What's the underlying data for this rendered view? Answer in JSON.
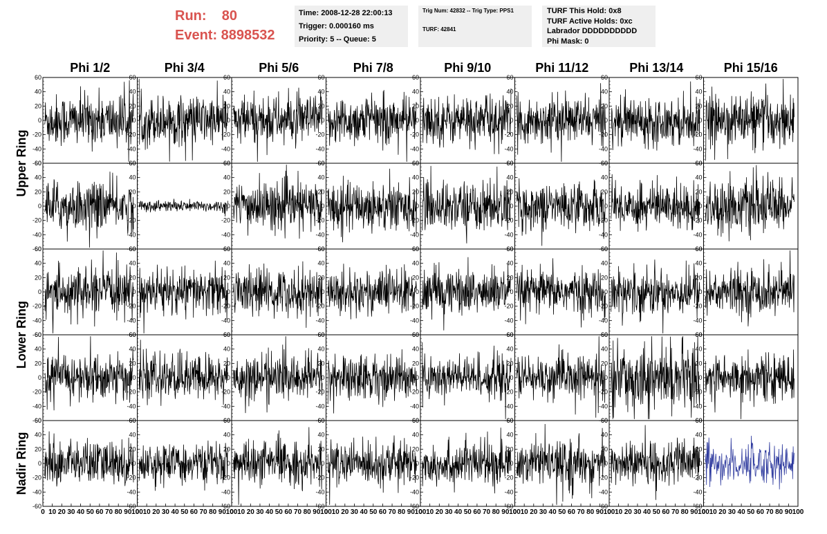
{
  "header": {
    "run_label": "Run:    80",
    "event_label": "Event: 8898532"
  },
  "info_box_1": {
    "time": "Time: 2008-12-28 22:00:13",
    "trigger": "Trigger: 0.000160 ms",
    "priority": "Priority: 5 -- Queue: 5"
  },
  "info_box_2": {
    "trig": "Trig Num: 42832 -- Trig Type: PPS1",
    "turf": "TURF: 42841"
  },
  "info_box_3": {
    "hold": "TURF This Hold: 0x8",
    "active": "TURF Active Holds: 0xc",
    "labrador": "Labrador DDDDDDDDDD",
    "phimask": "Phi Mask: 0"
  },
  "chart_data": {
    "type": "line",
    "columns": [
      "Phi 1/2",
      "Phi 3/4",
      "Phi 5/6",
      "Phi 7/8",
      "Phi 9/10",
      "Phi 11/12",
      "Phi 13/14",
      "Phi 15/16"
    ],
    "ring_labels": [
      "Upper Ring",
      "Lower Ring",
      "Nadir Ring"
    ],
    "xlim": [
      0,
      100
    ],
    "ylim": [
      -60,
      60
    ],
    "x_ticks": [
      0,
      10,
      20,
      30,
      40,
      50,
      60,
      70,
      80,
      90,
      100
    ],
    "y_ticks": [
      -60,
      -40,
      -20,
      0,
      20,
      40,
      60
    ],
    "grid": false,
    "colors": {
      "trace": "#000000",
      "highlight_trace": "#2e3a9e"
    },
    "highlight_panel": {
      "row": 4,
      "column": 7
    },
    "panel_amplitude": [
      [
        18,
        17,
        17,
        17,
        17,
        16,
        16,
        18
      ],
      [
        17,
        4,
        17,
        17,
        17,
        16,
        16,
        18
      ],
      [
        16,
        16,
        16,
        16,
        16,
        15,
        16,
        16
      ],
      [
        16,
        16,
        16,
        16,
        15,
        15,
        22,
        16
      ],
      [
        16,
        13,
        15,
        15,
        15,
        15,
        15,
        15
      ]
    ]
  }
}
